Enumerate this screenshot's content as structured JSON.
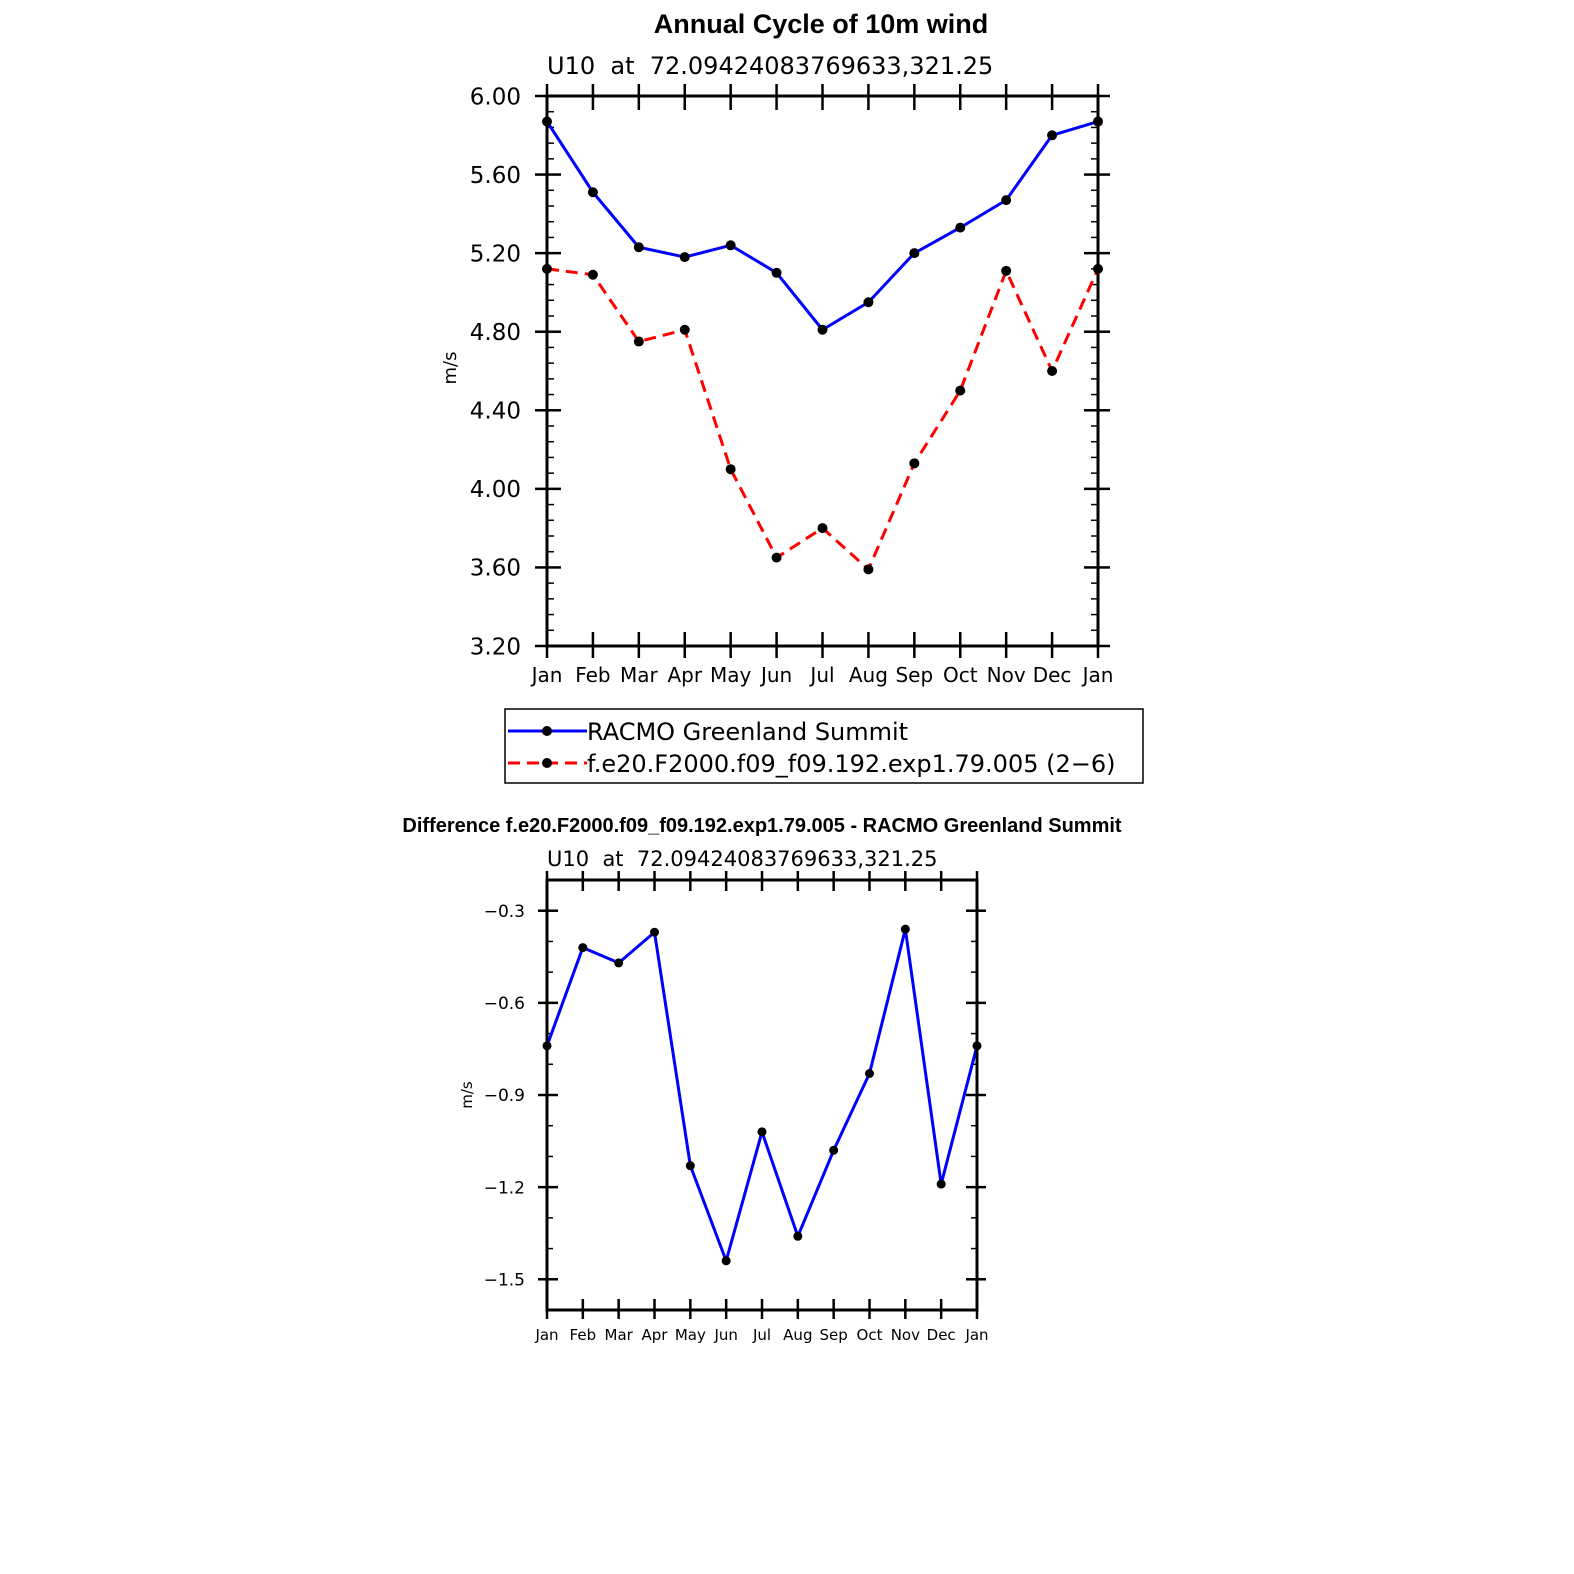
{
  "chart_data": [
    {
      "type": "line",
      "title": "Annual Cycle of 10m wind",
      "subtitle": "U10  at  72.09424083769633,321.25",
      "xlabel": "",
      "ylabel": "m/s",
      "categories": [
        "Jan",
        "Feb",
        "Mar",
        "Apr",
        "May",
        "Jun",
        "Jul",
        "Aug",
        "Sep",
        "Oct",
        "Nov",
        "Dec",
        "Jan"
      ],
      "ylim": [
        3.2,
        6.0
      ],
      "yticks": [
        "6.00",
        "5.60",
        "5.20",
        "4.80",
        "4.40",
        "4.00",
        "3.60",
        "3.20"
      ],
      "grid": false,
      "legend_position": "bottom",
      "series": [
        {
          "name": "RACMO Greenland Summit",
          "color": "#0000ff",
          "dash": "solid",
          "values": [
            5.87,
            5.51,
            5.23,
            5.18,
            5.24,
            5.1,
            4.81,
            4.95,
            5.2,
            5.33,
            5.47,
            5.8,
            5.87
          ]
        },
        {
          "name": "f.e20.F2000.f09_f09.192.exp1.79.005 (2−6)",
          "color": "#ff0000",
          "dash": "dashed",
          "values": [
            5.12,
            5.09,
            4.75,
            4.81,
            4.1,
            3.65,
            3.8,
            3.59,
            4.13,
            4.5,
            5.11,
            4.6,
            5.12
          ]
        }
      ]
    },
    {
      "type": "line",
      "title": "Difference f.e20.F2000.f09_f09.192.exp1.79.005 - RACMO Greenland Summit",
      "subtitle": "U10  at  72.09424083769633,321.25",
      "xlabel": "",
      "ylabel": "m/s",
      "categories": [
        "Jan",
        "Feb",
        "Mar",
        "Apr",
        "May",
        "Jun",
        "Jul",
        "Aug",
        "Sep",
        "Oct",
        "Nov",
        "Dec",
        "Jan"
      ],
      "ylim": [
        -1.6,
        -0.2
      ],
      "yticks": [
        "−0.3",
        "−0.6",
        "−0.9",
        "−1.2",
        "−1.5"
      ],
      "grid": false,
      "series": [
        {
          "name": "Difference",
          "color": "#0000ff",
          "dash": "solid",
          "values": [
            -0.74,
            -0.42,
            -0.47,
            -0.37,
            -1.13,
            -1.44,
            -1.02,
            -1.36,
            -1.08,
            -0.83,
            -0.36,
            -1.19,
            -0.74
          ]
        }
      ]
    }
  ]
}
